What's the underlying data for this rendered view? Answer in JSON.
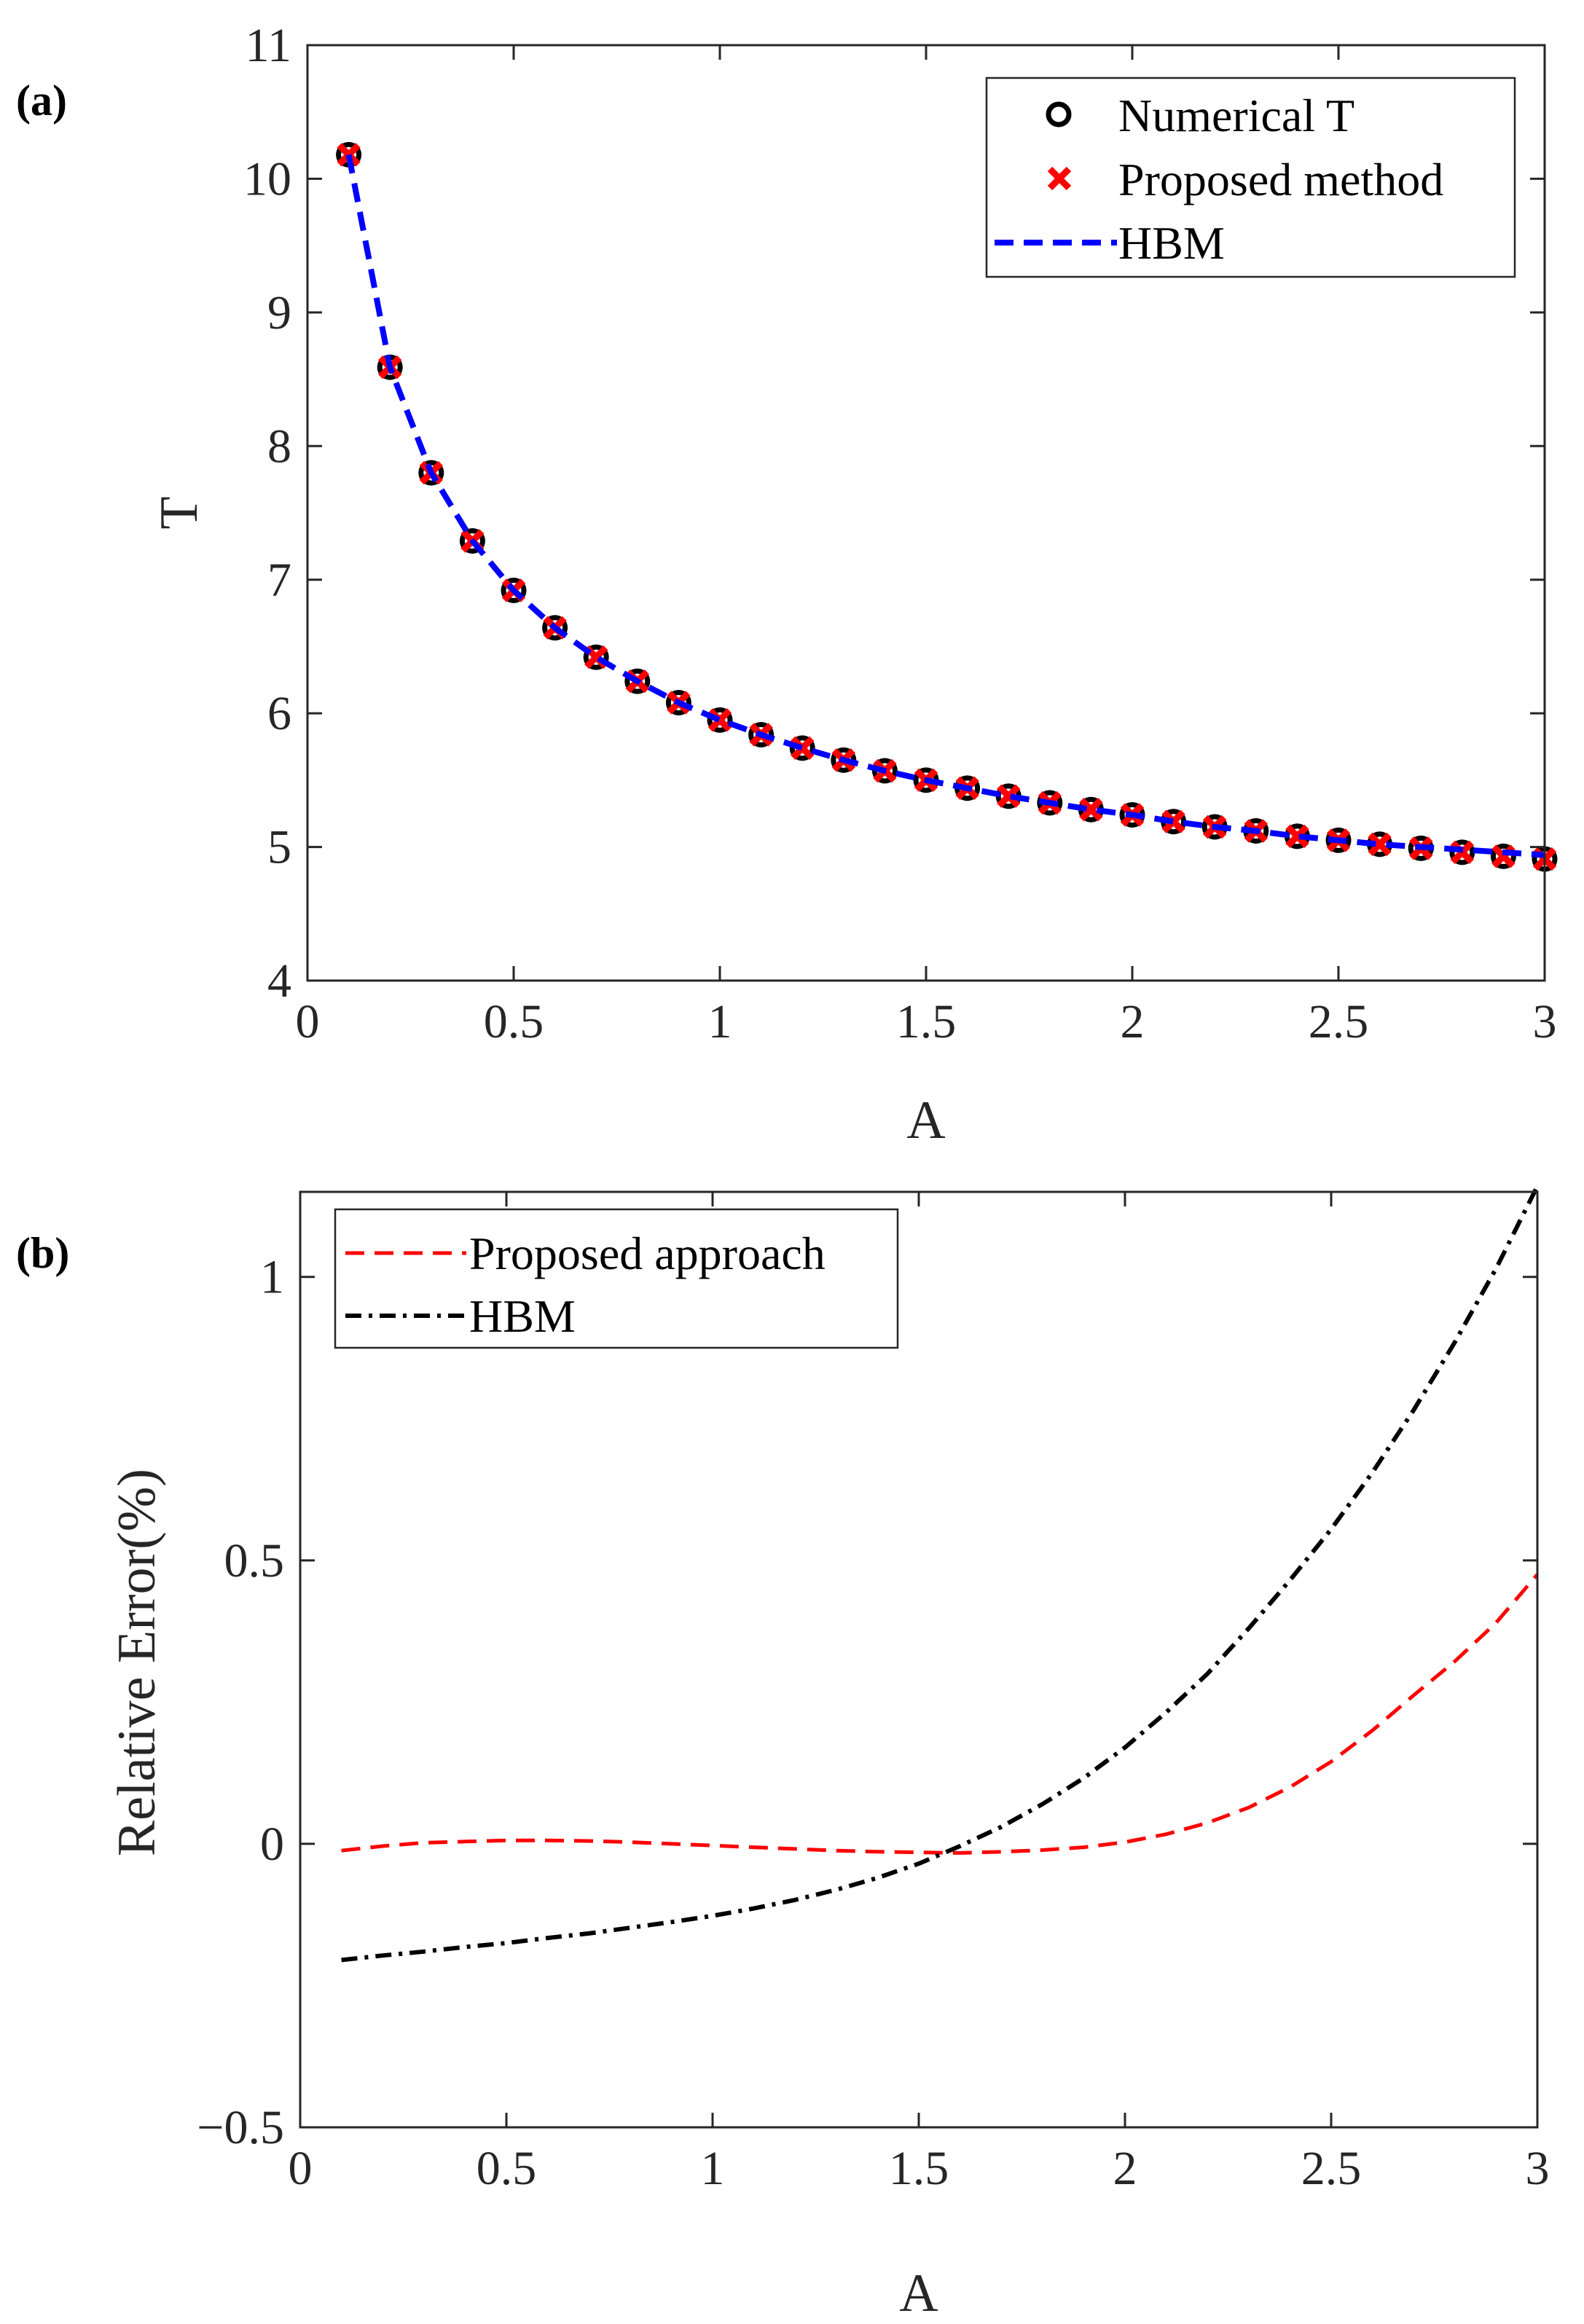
{
  "chart_data": [
    {
      "panel_label": "(a)",
      "type": "line",
      "xlabel": "A",
      "ylabel": "T",
      "xlim": [
        0,
        3
      ],
      "ylim": [
        4,
        11
      ],
      "xticks": [
        "0",
        "0.5",
        "1",
        "1.5",
        "2",
        "2.5",
        "3"
      ],
      "yticks": [
        "4",
        "5",
        "6",
        "7",
        "8",
        "9",
        "10",
        "11"
      ],
      "grid": false,
      "legend_position": "top-right",
      "x": [
        0.1,
        0.2,
        0.3,
        0.4,
        0.5,
        0.6,
        0.7,
        0.8,
        0.9,
        1.0,
        1.1,
        1.2,
        1.3,
        1.4,
        1.5,
        1.6,
        1.7,
        1.8,
        1.9,
        2.0,
        2.1,
        2.2,
        2.3,
        2.4,
        2.5,
        2.6,
        2.7,
        2.8,
        2.9,
        3.0
      ],
      "series": [
        {
          "name": "Numerical T",
          "style": "markers-circle",
          "color": "#000000",
          "values": [
            10.18,
            8.59,
            7.8,
            7.29,
            6.92,
            6.64,
            6.42,
            6.24,
            6.08,
            5.95,
            5.84,
            5.74,
            5.65,
            5.57,
            5.5,
            5.44,
            5.38,
            5.33,
            5.28,
            5.24,
            5.19,
            5.15,
            5.12,
            5.08,
            5.05,
            5.02,
            4.99,
            4.96,
            4.93,
            4.91
          ]
        },
        {
          "name": "Proposed method",
          "style": "markers-x",
          "color": "#ff0000",
          "values": [
            10.18,
            8.59,
            7.8,
            7.29,
            6.92,
            6.64,
            6.42,
            6.24,
            6.08,
            5.95,
            5.84,
            5.74,
            5.65,
            5.57,
            5.5,
            5.44,
            5.38,
            5.33,
            5.28,
            5.24,
            5.19,
            5.15,
            5.12,
            5.08,
            5.05,
            5.02,
            4.99,
            4.96,
            4.93,
            4.91
          ]
        },
        {
          "name": "HBM",
          "style": "dashed",
          "color": "#0000ff",
          "values": [
            10.18,
            8.59,
            7.8,
            7.29,
            6.92,
            6.64,
            6.42,
            6.24,
            6.08,
            5.95,
            5.84,
            5.74,
            5.65,
            5.57,
            5.5,
            5.44,
            5.38,
            5.33,
            5.28,
            5.24,
            5.19,
            5.15,
            5.12,
            5.08,
            5.05,
            5.02,
            5.0,
            4.98,
            4.96,
            4.94
          ]
        }
      ]
    },
    {
      "panel_label": "(b)",
      "type": "line",
      "xlabel": "A",
      "ylabel": "Relative Error(%)",
      "xlim": [
        0,
        3
      ],
      "ylim": [
        -0.5,
        1.15
      ],
      "xticks": [
        "0",
        "0.5",
        "1",
        "1.5",
        "2",
        "2.5",
        "3"
      ],
      "ytick_values": [
        -0.5,
        0,
        0.5,
        1
      ],
      "yticks": [
        "−0.5",
        "0",
        "0.5",
        "1"
      ],
      "grid": false,
      "legend_position": "top-left",
      "x": [
        0.1,
        0.2,
        0.3,
        0.4,
        0.5,
        0.6,
        0.7,
        0.8,
        0.9,
        1.0,
        1.1,
        1.2,
        1.3,
        1.4,
        1.5,
        1.6,
        1.7,
        1.8,
        1.9,
        2.0,
        2.1,
        2.2,
        2.3,
        2.4,
        2.5,
        2.6,
        2.7,
        2.8,
        2.9,
        3.0
      ],
      "series": [
        {
          "name": "Proposed approach",
          "style": "dashed",
          "color": "#ff0000",
          "values": [
            -0.012,
            -0.004,
            0.002,
            0.004,
            0.006,
            0.006,
            0.005,
            0.003,
            0.0,
            -0.003,
            -0.006,
            -0.009,
            -0.012,
            -0.014,
            -0.015,
            -0.016,
            -0.014,
            -0.011,
            -0.006,
            0.003,
            0.017,
            0.037,
            0.064,
            0.1,
            0.145,
            0.2,
            0.262,
            0.322,
            0.39,
            0.475
          ]
        },
        {
          "name": "HBM",
          "style": "dash-dot",
          "color": "#000000",
          "values": [
            -0.205,
            -0.197,
            -0.19,
            -0.182,
            -0.175,
            -0.166,
            -0.158,
            -0.148,
            -0.138,
            -0.127,
            -0.114,
            -0.099,
            -0.081,
            -0.06,
            -0.035,
            -0.004,
            0.03,
            0.07,
            0.116,
            0.17,
            0.232,
            0.3,
            0.38,
            0.465,
            0.555,
            0.655,
            0.765,
            0.885,
            1.015,
            1.16
          ]
        }
      ]
    }
  ]
}
